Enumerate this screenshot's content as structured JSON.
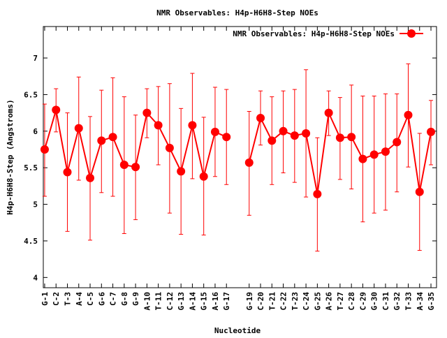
{
  "chart_data": {
    "type": "line",
    "title": "NMR Observables: H4p-H6H8-Step NOEs",
    "xlabel": "Nucleotide",
    "ylabel": "H4p-H6H8-Step (Angstroms)",
    "ylim": [
      3.86,
      7.43
    ],
    "xlim": [
      0.88,
      35.49
    ],
    "yticks": [
      "4",
      "4.5",
      "5",
      "5.5",
      "6",
      "6.5",
      "7"
    ],
    "legend": {
      "label": "NMR Observables: H4p-H6H8-Step NOEs",
      "position": "top-right"
    },
    "grid": false,
    "series_color": "#ff0000",
    "series": [
      {
        "name": "NMR Observables: H4p-H6H8-Step NOEs",
        "points": [
          {
            "x": 1,
            "label": "G-1",
            "y": 5.75,
            "low": 5.11,
            "high": 6.37
          },
          {
            "x": 2,
            "label": "C-2",
            "y": 6.29,
            "low": 5.99,
            "high": 6.58
          },
          {
            "x": 3,
            "label": "T-3",
            "y": 5.44,
            "low": 4.63,
            "high": 6.25
          },
          {
            "x": 4,
            "label": "A-4",
            "y": 6.04,
            "low": 5.33,
            "high": 6.74
          },
          {
            "x": 5,
            "label": "C-5",
            "y": 5.36,
            "low": 4.51,
            "high": 6.2
          },
          {
            "x": 6,
            "label": "G-6",
            "y": 5.87,
            "low": 5.16,
            "high": 6.56
          },
          {
            "x": 7,
            "label": "C-7",
            "y": 5.92,
            "low": 5.11,
            "high": 6.73
          },
          {
            "x": 8,
            "label": "G-8",
            "y": 5.54,
            "low": 4.6,
            "high": 6.47
          },
          {
            "x": 9,
            "label": "G-9",
            "y": 5.51,
            "low": 4.79,
            "high": 6.22
          },
          {
            "x": 10,
            "label": "A-10",
            "y": 6.25,
            "low": 5.91,
            "high": 6.58
          },
          {
            "x": 11,
            "label": "T-11",
            "y": 6.08,
            "low": 5.54,
            "high": 6.61
          },
          {
            "x": 12,
            "label": "C-12",
            "y": 5.77,
            "low": 4.88,
            "high": 6.65
          },
          {
            "x": 13,
            "label": "G-13",
            "y": 5.45,
            "low": 4.59,
            "high": 6.31
          },
          {
            "x": 14,
            "label": "A-14",
            "y": 6.08,
            "low": 5.35,
            "high": 6.79
          },
          {
            "x": 15,
            "label": "G-15",
            "y": 5.38,
            "low": 4.58,
            "high": 6.19
          },
          {
            "x": 16,
            "label": "A-16",
            "y": 5.99,
            "low": 5.38,
            "high": 6.6
          },
          {
            "x": 17,
            "label": "G-17",
            "y": 5.92,
            "low": 5.27,
            "high": 6.57
          },
          {
            "x": 19,
            "label": "G-19",
            "y": 5.57,
            "low": 4.85,
            "high": 6.27
          },
          {
            "x": 20,
            "label": "C-20",
            "y": 6.18,
            "low": 5.81,
            "high": 6.55
          },
          {
            "x": 21,
            "label": "T-21",
            "y": 5.87,
            "low": 5.27,
            "high": 6.47
          },
          {
            "x": 22,
            "label": "C-22",
            "y": 6.0,
            "low": 5.43,
            "high": 6.55
          },
          {
            "x": 23,
            "label": "T-23",
            "y": 5.94,
            "low": 5.3,
            "high": 6.57
          },
          {
            "x": 24,
            "label": "C-24",
            "y": 5.97,
            "low": 5.1,
            "high": 6.84
          },
          {
            "x": 25,
            "label": "G-25",
            "y": 5.14,
            "low": 4.36,
            "high": 5.91
          },
          {
            "x": 26,
            "label": "A-26",
            "y": 6.25,
            "low": 5.94,
            "high": 6.55
          },
          {
            "x": 27,
            "label": "T-27",
            "y": 5.91,
            "low": 5.34,
            "high": 6.46
          },
          {
            "x": 28,
            "label": "C-28",
            "y": 5.92,
            "low": 5.21,
            "high": 6.63
          },
          {
            "x": 29,
            "label": "C-29",
            "y": 5.62,
            "low": 4.76,
            "high": 6.48
          },
          {
            "x": 30,
            "label": "G-30",
            "y": 5.68,
            "low": 4.88,
            "high": 6.48
          },
          {
            "x": 31,
            "label": "C-31",
            "y": 5.72,
            "low": 4.92,
            "high": 6.51
          },
          {
            "x": 32,
            "label": "G-32",
            "y": 5.85,
            "low": 5.17,
            "high": 6.51
          },
          {
            "x": 33,
            "label": "T-33",
            "y": 6.22,
            "low": 5.51,
            "high": 6.92
          },
          {
            "x": 34,
            "label": "A-34",
            "y": 5.17,
            "low": 4.37,
            "high": 5.97
          },
          {
            "x": 35,
            "label": "G-35",
            "y": 5.99,
            "low": 5.54,
            "high": 6.42
          }
        ]
      }
    ]
  }
}
